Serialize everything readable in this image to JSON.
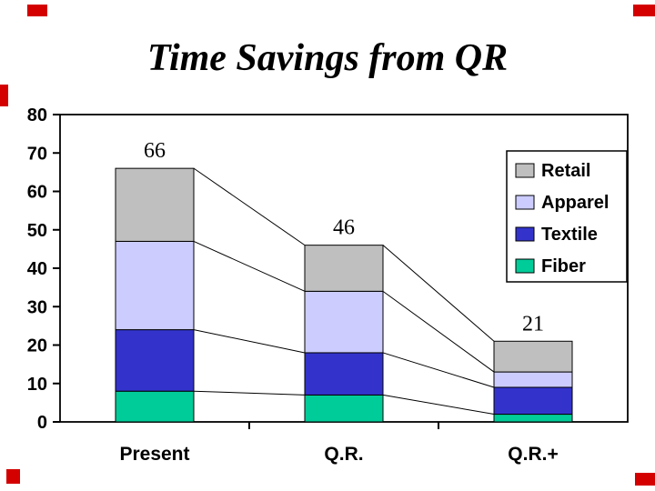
{
  "chart_data": {
    "type": "bar",
    "stacked": true,
    "title": "Time Savings from QR",
    "categories": [
      "Present",
      "Q.R.",
      "Q.R.+"
    ],
    "series": [
      {
        "name": "Fiber",
        "color": "#00CC99",
        "values": [
          8,
          7,
          2
        ]
      },
      {
        "name": "Textile",
        "color": "#3333CC",
        "values": [
          16,
          11,
          7
        ]
      },
      {
        "name": "Apparel",
        "color": "#CCCCFF",
        "values": [
          23,
          16,
          4
        ]
      },
      {
        "name": "Retail",
        "color": "#BFBFBF",
        "values": [
          19,
          12,
          8
        ]
      }
    ],
    "totals": [
      66,
      46,
      21
    ],
    "ylim": [
      0,
      80
    ],
    "yticks": [
      0,
      10,
      20,
      30,
      40,
      50,
      60,
      70,
      80
    ],
    "xlabel": "",
    "ylabel": "",
    "grid": false,
    "series_lines": true,
    "legend": {
      "position": "top-right",
      "entries": [
        "Retail",
        "Apparel",
        "Textile",
        "Fiber"
      ]
    }
  },
  "decorations": {
    "corner_marker_color": "#D40000"
  }
}
